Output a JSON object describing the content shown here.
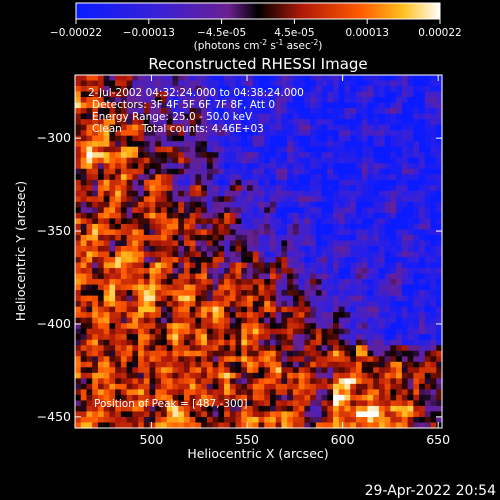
{
  "chart_data": {
    "type": "heatmap",
    "title": "Reconstructed RHESSI Image",
    "xlabel": "Heliocentric X (arcsec)",
    "ylabel": "Heliocentric Y (arcsec)",
    "xlim": [
      460,
      652
    ],
    "ylim": [
      -456,
      -266
    ],
    "x_ticks": [
      500,
      550,
      600,
      650
    ],
    "y_ticks": [
      -300,
      -350,
      -400,
      -450
    ],
    "colorbar": {
      "range": [
        -0.00022,
        0.00022
      ],
      "ticks": [
        "-0.00022",
        "-0.00013",
        "-4.5e-05",
        "4.5e-05",
        "0.00013",
        "0.00022"
      ],
      "unit_text": "(photons cm",
      "unit_exp1": "-2",
      "unit_mid": " s",
      "unit_exp2": "-1",
      "unit_end": " asec",
      "unit_exp3": "-2",
      "unit_close": ")"
    },
    "annotations": [
      "2-Jul-2002 04:32:24.000 to 04:38:24.000",
      "Detectors: 3F 4F 5F 6F 7F 8F, Att 0",
      "Energy Range: 25.0 - 50.0 keV",
      "Clean      Total counts: 4.46E+03"
    ],
    "peak_label": "Position of Peak = [487,-300]",
    "peak": [
      487,
      -300
    ],
    "grid": false
  },
  "footer": {
    "timestamp": "29-Apr-2022 20:54"
  }
}
